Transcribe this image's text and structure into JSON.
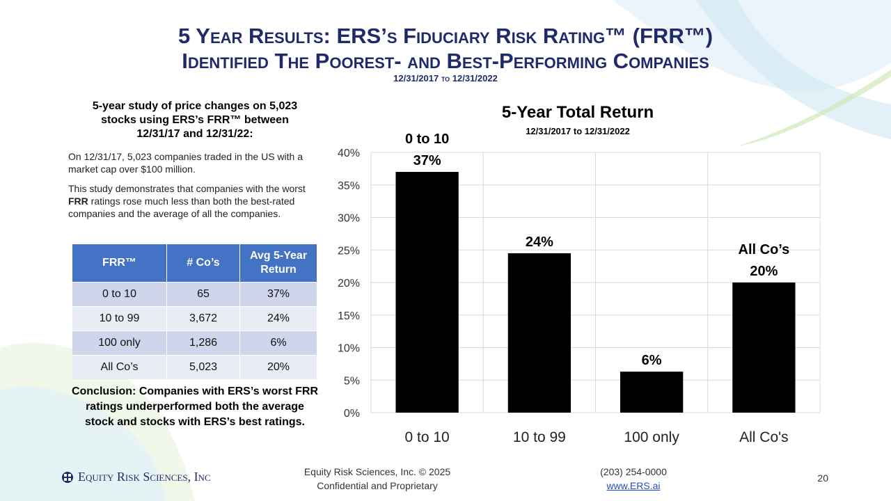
{
  "slide": {
    "title_line1": "5 Year Results: ERS’s Fiduciary Risk Rating™ (FRR™)",
    "title_line2": "Identified The Poorest- and Best-Performing Companies",
    "date_range": "12/31/2017 to 12/31/2022"
  },
  "left": {
    "heading": "5-year study of price changes on 5,023 stocks using ERS’s FRR™ between 12/31/17 and 12/31/22:",
    "para1": "On 12/31/17, 5,023 companies traded in the US with a market cap over $100 million.",
    "para2_prefix": "This study demonstrates that companies with the worst ",
    "para2_bold": "FRR",
    "para2_suffix": " ratings rose much less than both the best-rated companies and the average of all the companies.",
    "table": {
      "headers": [
        "FRR™",
        "# Co’s",
        "Avg 5-Year Return"
      ],
      "rows": [
        [
          "0 to 10",
          "65",
          "37%"
        ],
        [
          "10 to 99",
          "3,672",
          "24%"
        ],
        [
          "100 only",
          "1,286",
          "6%"
        ],
        [
          "All Co’s",
          "5,023",
          "20%"
        ]
      ]
    },
    "conclusion": "Conclusion: Companies with ERS’s worst FRR ratings underperformed both the average stock and stocks with ERS’s best ratings."
  },
  "chart_data": {
    "type": "bar",
    "title": "5-Year Total Return",
    "subtitle": "12/31/2017 to 12/31/2022",
    "categories": [
      "0 to 10",
      "10 to 99",
      "100 only",
      "All Co's"
    ],
    "values": [
      37,
      24.5,
      6.3,
      20
    ],
    "data_labels": [
      {
        "line1": "0 to 10",
        "line2": "37%"
      },
      {
        "line1": "",
        "line2": "24%"
      },
      {
        "line1": "",
        "line2": "6%"
      },
      {
        "line1": "All Co’s",
        "line2": "20%"
      }
    ],
    "yticks": [
      "0%",
      "5%",
      "10%",
      "15%",
      "20%",
      "25%",
      "30%",
      "35%",
      "40%"
    ],
    "ylim": [
      0,
      40
    ],
    "grid": true,
    "bar_color": "#000000"
  },
  "footer": {
    "company": "Equity Risk Sciences, Inc",
    "copyright": "Equity Risk Sciences, Inc. © 2025",
    "confidential": "Confidential and Proprietary",
    "phone": "(203) 254-0000",
    "website": "www.ERS.ai",
    "page_number": "20"
  }
}
